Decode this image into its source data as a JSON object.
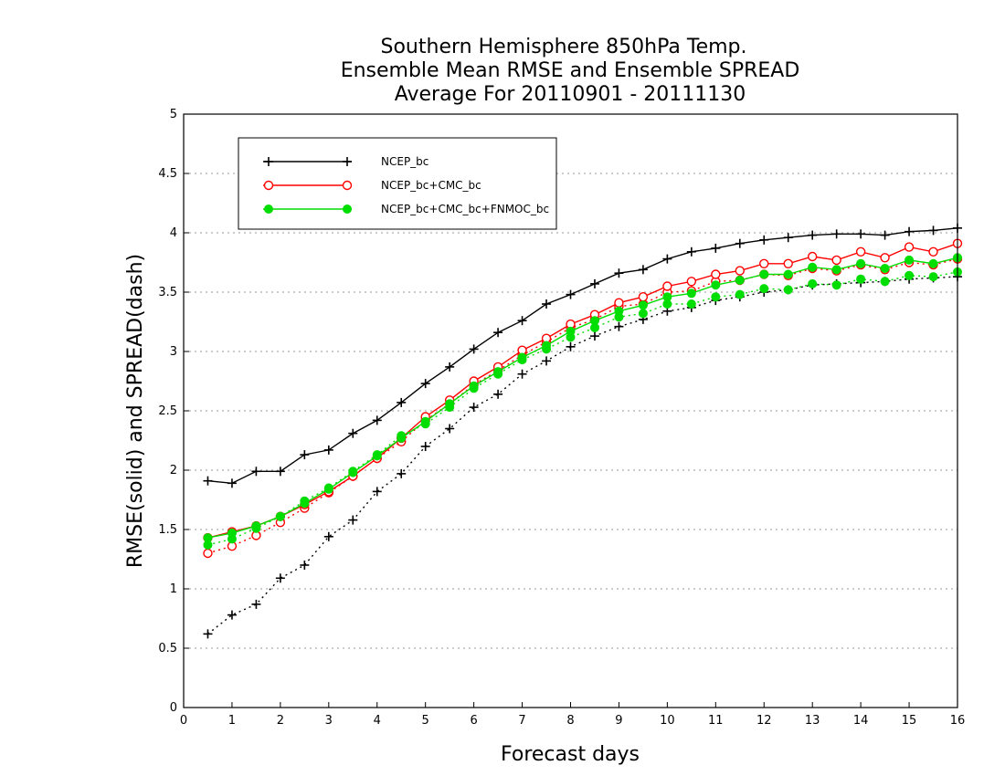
{
  "chart_data": {
    "type": "line",
    "title": [
      "Southern Hemisphere 850hPa Temp.",
      "Ensemble Mean RMSE and Ensemble SPREAD",
      "Average For 20110901 - 20111130"
    ],
    "xlabel": "Forecast days",
    "ylabel": "RMSE(solid) and SPREAD(dash)",
    "xlim": [
      0,
      16
    ],
    "ylim": [
      0,
      5
    ],
    "xticks": [
      0,
      1,
      2,
      3,
      4,
      5,
      6,
      7,
      8,
      9,
      10,
      11,
      12,
      13,
      14,
      15,
      16
    ],
    "yticks": [
      0,
      0.5,
      1,
      1.5,
      2,
      2.5,
      3,
      3.5,
      4,
      4.5,
      5
    ],
    "ytick_labels": [
      "0",
      "0.5",
      "1",
      "1.5",
      "2",
      "2.5",
      "3",
      "3.5",
      "4",
      "4.5",
      "5"
    ],
    "grid": "horizontal dotted",
    "legend_position": "top-left",
    "x": [
      0.5,
      1,
      1.5,
      2,
      2.5,
      3,
      3.5,
      4,
      4.5,
      5,
      5.5,
      6,
      6.5,
      7,
      7.5,
      8,
      8.5,
      9,
      9.5,
      10,
      10.5,
      11,
      11.5,
      12,
      12.5,
      13,
      13.5,
      14,
      14.5,
      15,
      15.5,
      16
    ],
    "series": [
      {
        "name": "NCEP_bc",
        "color": "#000000",
        "marker": "plus",
        "rmse": [
          1.91,
          1.89,
          1.99,
          1.99,
          2.13,
          2.17,
          2.31,
          2.42,
          2.57,
          2.73,
          2.87,
          3.02,
          3.16,
          3.26,
          3.4,
          3.48,
          3.57,
          3.66,
          3.69,
          3.78,
          3.84,
          3.87,
          3.91,
          3.94,
          3.96,
          3.98,
          3.99,
          3.99,
          3.98,
          4.01,
          4.02,
          4.04
        ],
        "spread": [
          0.62,
          0.78,
          0.87,
          1.09,
          1.2,
          1.44,
          1.58,
          1.82,
          1.97,
          2.2,
          2.35,
          2.53,
          2.64,
          2.81,
          2.92,
          3.04,
          3.13,
          3.21,
          3.27,
          3.34,
          3.37,
          3.43,
          3.46,
          3.5,
          3.52,
          3.56,
          3.57,
          3.58,
          3.59,
          3.61,
          3.62,
          3.63
        ]
      },
      {
        "name": "NCEP_bc+CMC_bc",
        "color": "#ff0000",
        "marker": "open-circle",
        "rmse": [
          1.43,
          1.48,
          1.53,
          1.61,
          1.71,
          1.82,
          1.95,
          2.1,
          2.27,
          2.45,
          2.59,
          2.75,
          2.87,
          3.01,
          3.11,
          3.23,
          3.31,
          3.41,
          3.46,
          3.55,
          3.59,
          3.65,
          3.68,
          3.74,
          3.74,
          3.8,
          3.77,
          3.84,
          3.79,
          3.88,
          3.84,
          3.91
        ],
        "spread": [
          1.3,
          1.36,
          1.45,
          1.56,
          1.68,
          1.81,
          1.95,
          2.1,
          2.24,
          2.42,
          2.56,
          2.72,
          2.84,
          2.97,
          3.08,
          3.2,
          3.27,
          3.38,
          3.4,
          3.5,
          3.51,
          3.59,
          3.6,
          3.65,
          3.64,
          3.7,
          3.68,
          3.73,
          3.69,
          3.75,
          3.73,
          3.78
        ]
      },
      {
        "name": "NCEP_bc+CMC_bc+FNMOC_bc",
        "color": "#00dd00",
        "marker": "filled-circle",
        "rmse": [
          1.43,
          1.47,
          1.53,
          1.61,
          1.72,
          1.84,
          1.98,
          2.12,
          2.27,
          2.41,
          2.56,
          2.71,
          2.83,
          2.95,
          3.05,
          3.17,
          3.26,
          3.34,
          3.39,
          3.46,
          3.49,
          3.56,
          3.6,
          3.65,
          3.65,
          3.71,
          3.69,
          3.74,
          3.7,
          3.77,
          3.74,
          3.79
        ],
        "spread": [
          1.37,
          1.42,
          1.51,
          1.61,
          1.74,
          1.85,
          1.99,
          2.13,
          2.29,
          2.39,
          2.53,
          2.69,
          2.81,
          2.93,
          3.02,
          3.12,
          3.2,
          3.29,
          3.32,
          3.4,
          3.4,
          3.46,
          3.48,
          3.53,
          3.52,
          3.57,
          3.56,
          3.61,
          3.59,
          3.64,
          3.63,
          3.67
        ]
      }
    ]
  }
}
